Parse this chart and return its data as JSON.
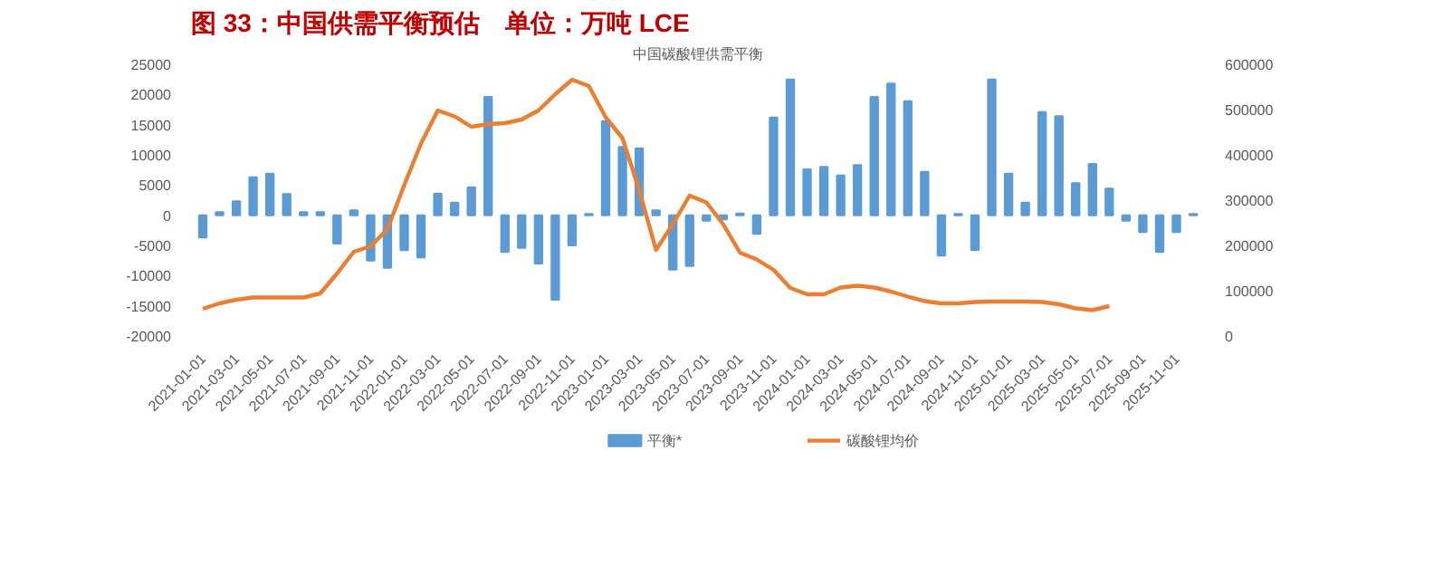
{
  "chart_data": {
    "type": "bar",
    "title": "图 33：中国供需平衡预估　单位：万吨 LCE",
    "subtitle": "中国碳酸锂供需平衡",
    "categories": [
      "2021-01-01",
      null,
      "2021-03-01",
      null,
      "2021-05-01",
      null,
      "2021-07-01",
      null,
      "2021-09-01",
      null,
      "2021-11-01",
      null,
      "2022-01-01",
      null,
      "2022-03-01",
      null,
      "2022-05-01",
      null,
      "2022-07-01",
      null,
      "2022-09-01",
      null,
      "2022-11-01",
      null,
      "2023-01-01",
      null,
      "2023-03-01",
      null,
      "2023-05-01",
      null,
      "2023-07-01",
      null,
      "2023-09-01",
      null,
      "2023-11-01",
      null,
      "2024-01-01",
      null,
      "2024-03-01",
      null,
      "2024-05-01",
      null,
      "2024-07-01",
      null,
      "2024-09-01",
      null,
      "2024-11-01",
      null,
      "2025-01-01",
      null,
      "2025-03-01",
      null,
      "2025-05-01",
      null,
      "2025-07-01",
      null,
      "2025-09-01",
      null,
      "2025-11-01",
      null
    ],
    "series": [
      {
        "name": "平衡*",
        "color": "#5b9bd5",
        "values": [
          -3700,
          500,
          2300,
          6300,
          6900,
          3500,
          500,
          500,
          -4700,
          800,
          -7500,
          -8700,
          -5800,
          -7000,
          3600,
          2100,
          4600,
          19600,
          -6100,
          -5400,
          -8000,
          -14000,
          -5000,
          200,
          15600,
          11300,
          11100,
          800,
          -9000,
          -8400,
          -900,
          -700,
          300,
          -3100,
          16200,
          22500,
          7600,
          8000,
          6600,
          8300,
          19600,
          21800,
          18900,
          7200,
          -6700,
          200,
          -5800,
          22500,
          6900,
          2100,
          17100,
          16400,
          5300,
          8500,
          4400,
          -900,
          -2800,
          -6100,
          -2800,
          200
        ]
      },
      {
        "name": "碳酸锂均价",
        "type": "line",
        "axis": "y2",
        "color": "#ed7d31",
        "values": [
          60000,
          72000,
          80000,
          85000,
          85000,
          85000,
          85000,
          94000,
          138000,
          186000,
          198000,
          236000,
          333000,
          425000,
          498000,
          485000,
          462000,
          468000,
          470000,
          478000,
          498000,
          534000,
          566000,
          552000,
          483000,
          437000,
          322000,
          190000,
          247000,
          310000,
          295000,
          247000,
          184000,
          169000,
          146000,
          106000,
          92000,
          92000,
          107000,
          111000,
          107000,
          98000,
          87000,
          77000,
          72000,
          72000,
          75000,
          76000,
          76000,
          76000,
          75000,
          70000,
          61000,
          57000,
          66000,
          null,
          null,
          null,
          null,
          null
        ]
      }
    ],
    "ylim": [
      -20000,
      25000
    ],
    "yticks": [
      -20000,
      -15000,
      -10000,
      -5000,
      0,
      5000,
      10000,
      15000,
      20000,
      25000
    ],
    "y2lim": [
      0,
      600000
    ],
    "y2ticks": [
      0,
      100000,
      200000,
      300000,
      400000,
      500000,
      600000
    ],
    "legend": "bottom",
    "grid": false
  }
}
